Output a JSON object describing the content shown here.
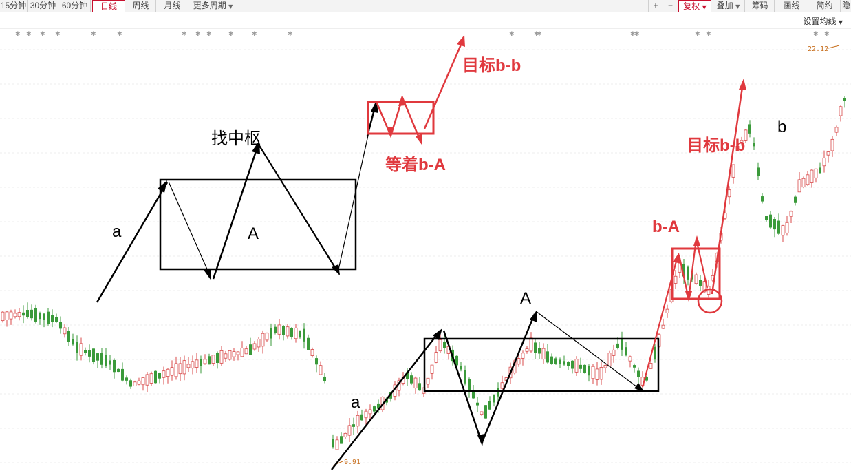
{
  "toolbar": {
    "period_tabs": [
      {
        "label": "15分钟"
      },
      {
        "label": "30分钟"
      },
      {
        "label": "60分钟"
      },
      {
        "label": "日线",
        "active": true
      },
      {
        "label": "周线"
      },
      {
        "label": "月线"
      },
      {
        "label": "更多周期"
      }
    ],
    "dropdown_icon": "caret-down-icon",
    "tools": [
      {
        "label": "+",
        "icon": "plus-icon"
      },
      {
        "label": "−",
        "icon": "minus-icon"
      },
      {
        "label": "复权",
        "active": true
      },
      {
        "label": "叠加"
      },
      {
        "label": "筹码"
      },
      {
        "label": "画线"
      },
      {
        "label": "简约"
      },
      {
        "label": "隐"
      }
    ],
    "ma_setting_label": "设置均线"
  },
  "colors": {
    "up": "#d84848",
    "down": "#3a9a3a",
    "annotation_red": "#e0393e",
    "annotation_black": "#000000",
    "price_label": "#c87020",
    "active_tab": "#c8102e"
  },
  "chart_data": {
    "type": "candlestick",
    "high_label": "22.12",
    "low_label": "9.91",
    "ylim": [
      9.5,
      23.0
    ],
    "grid": true,
    "candles": [],
    "annotations": {
      "left_diagram": {
        "title": "找中枢",
        "a_label": "a",
        "A_label": "A"
      },
      "right_diagram": {
        "a_label": "a",
        "A_label": "A",
        "b_label": "b",
        "bA_label": "b-A"
      },
      "red_labels": {
        "target_top": "目标b-b",
        "waiting": "等着b-A",
        "target_right": "目标b-b"
      }
    }
  }
}
